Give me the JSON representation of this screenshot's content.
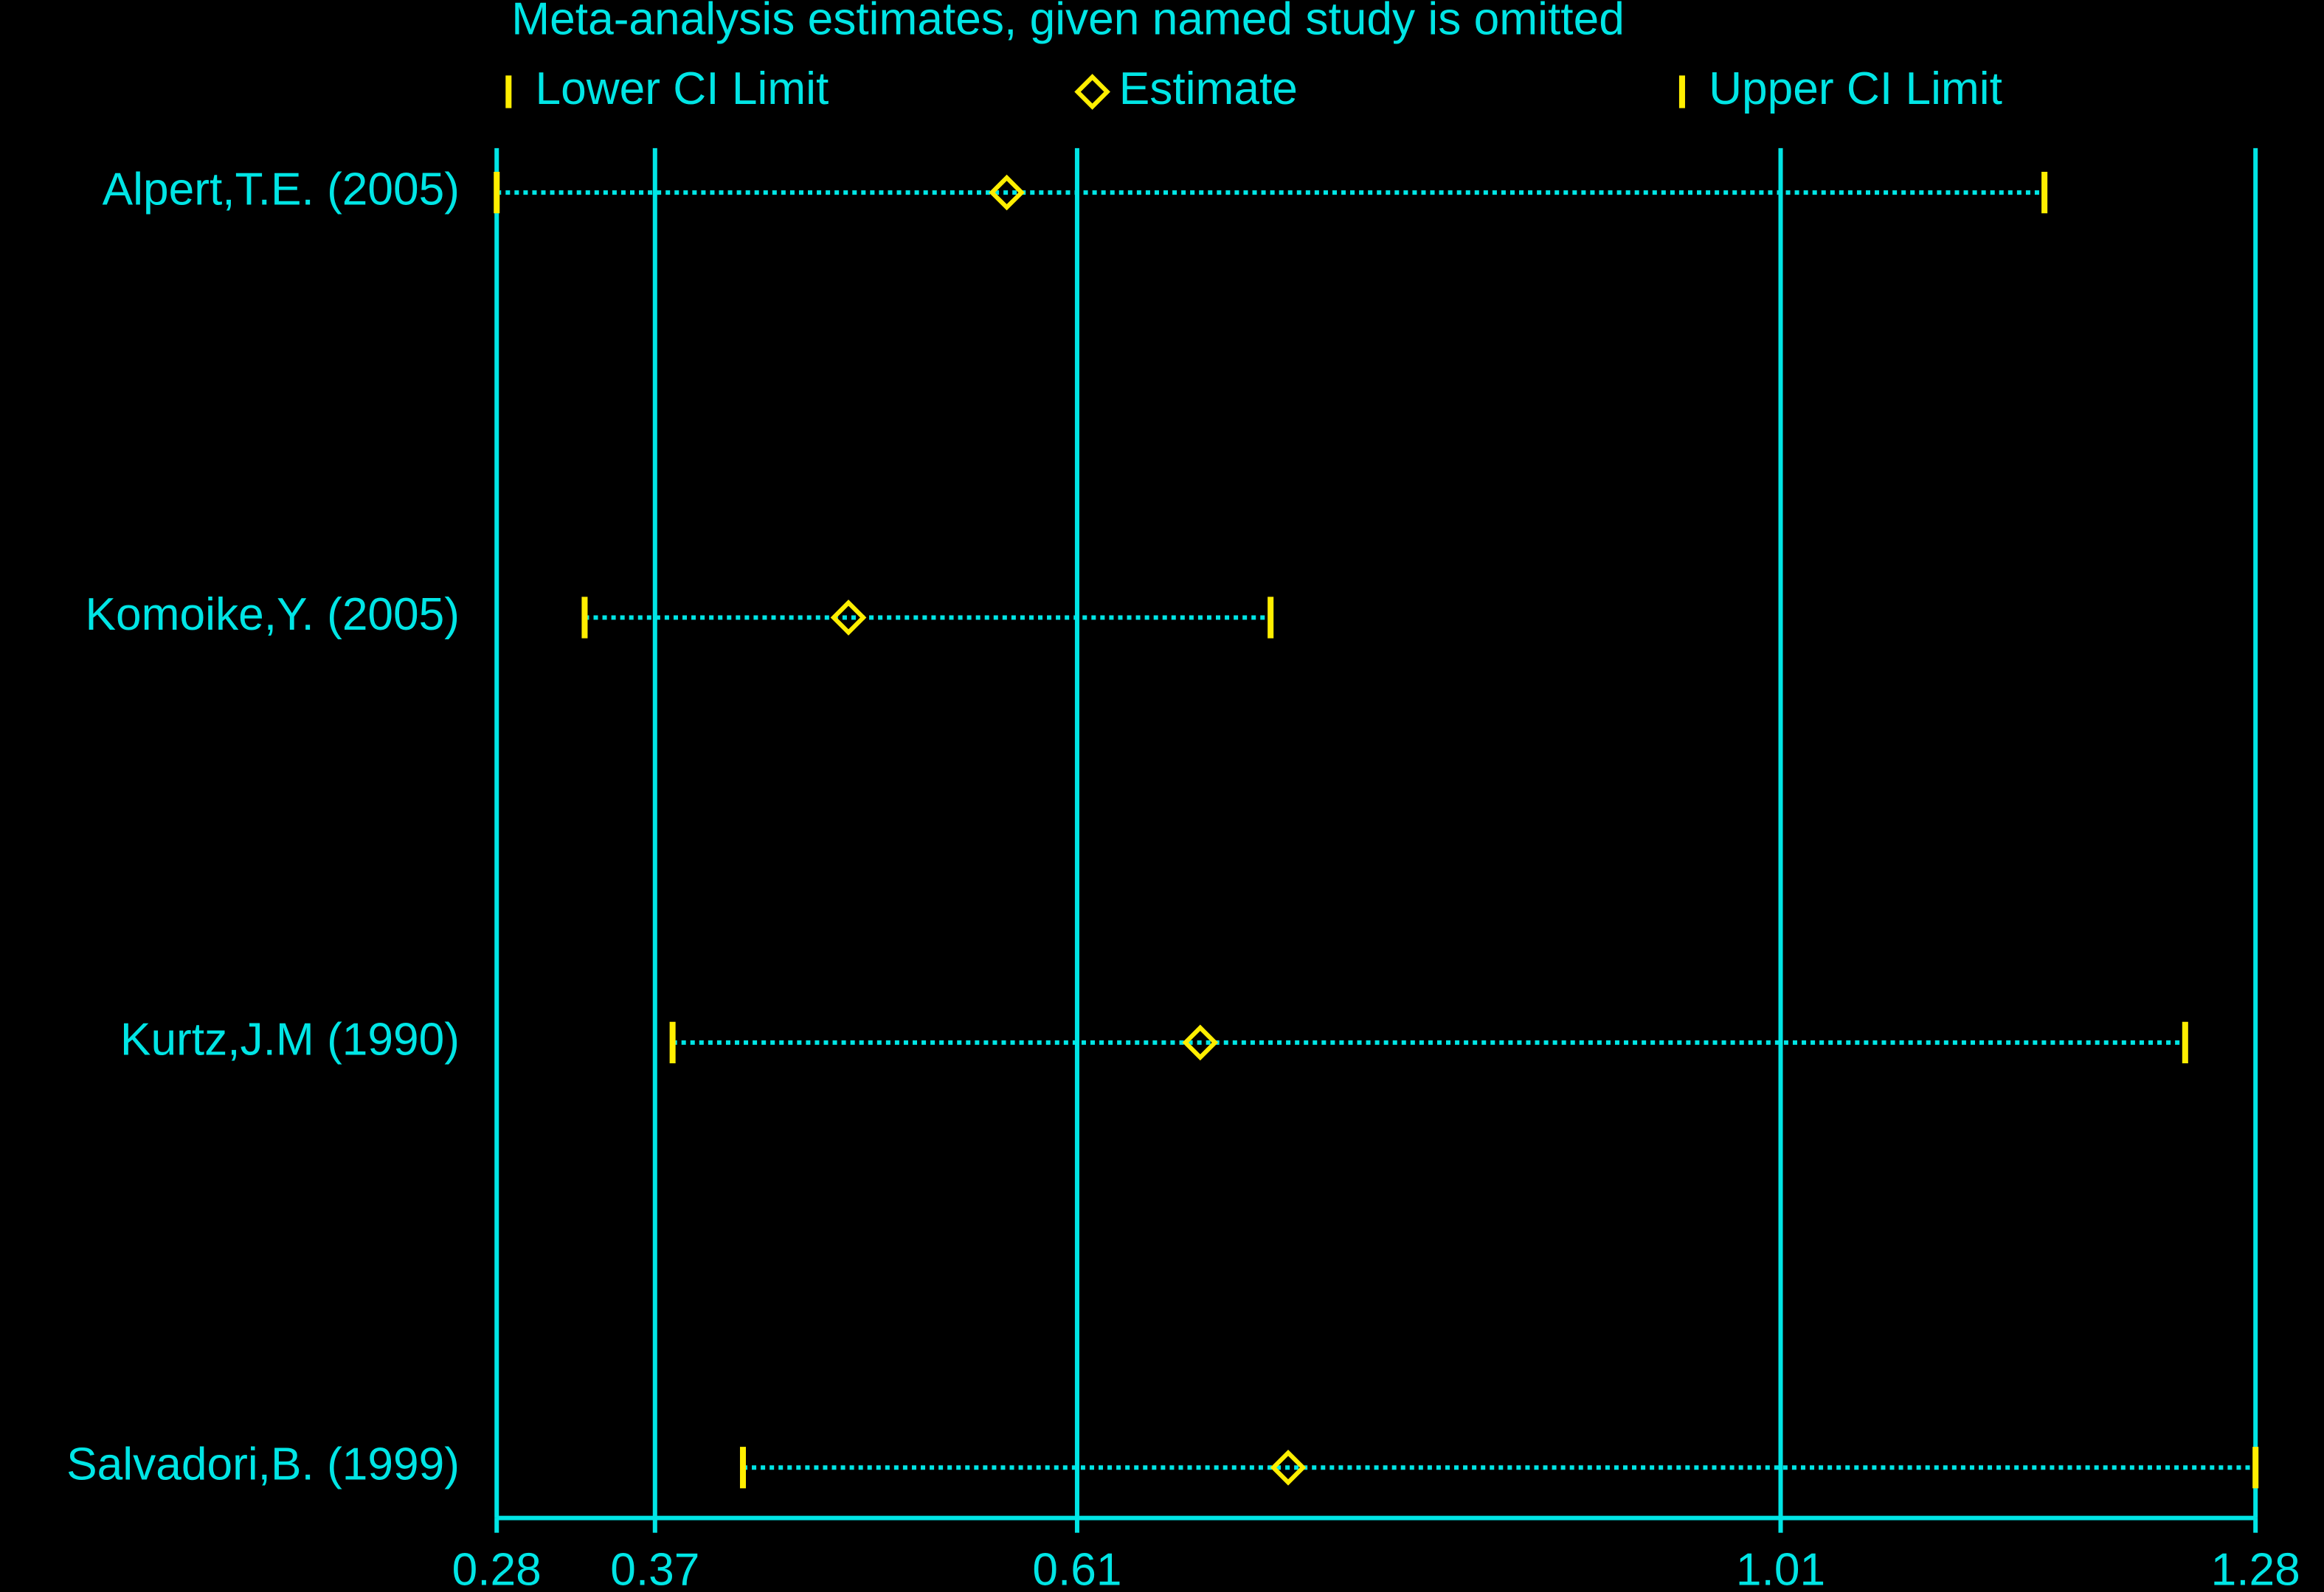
{
  "chart_data": {
    "type": "forest",
    "title": "Meta-analysis estimates, given named study is omitted",
    "categories": [
      "Alpert,T.E. (2005)",
      "Komoike,Y. (2005)",
      "Kurtz,J.M (1990)",
      "Salvadori,B. (1999)"
    ],
    "series": [
      {
        "name": "Lower CI Limit",
        "color": "#ffee00",
        "values": [
          0.28,
          0.33,
          0.38,
          0.42
        ]
      },
      {
        "name": "Estimate",
        "color": "#ffee00",
        "values": [
          0.57,
          0.48,
          0.68,
          0.73
        ]
      },
      {
        "name": "Upper CI Limit",
        "color": "#ffee00",
        "values": [
          1.16,
          0.72,
          1.24,
          1.28
        ]
      }
    ],
    "axis_color": "#00e5e5",
    "xlim": [
      0.28,
      1.28
    ],
    "xticks": [
      0.28,
      0.37,
      0.61,
      1.01,
      1.28
    ],
    "grid": true
  }
}
